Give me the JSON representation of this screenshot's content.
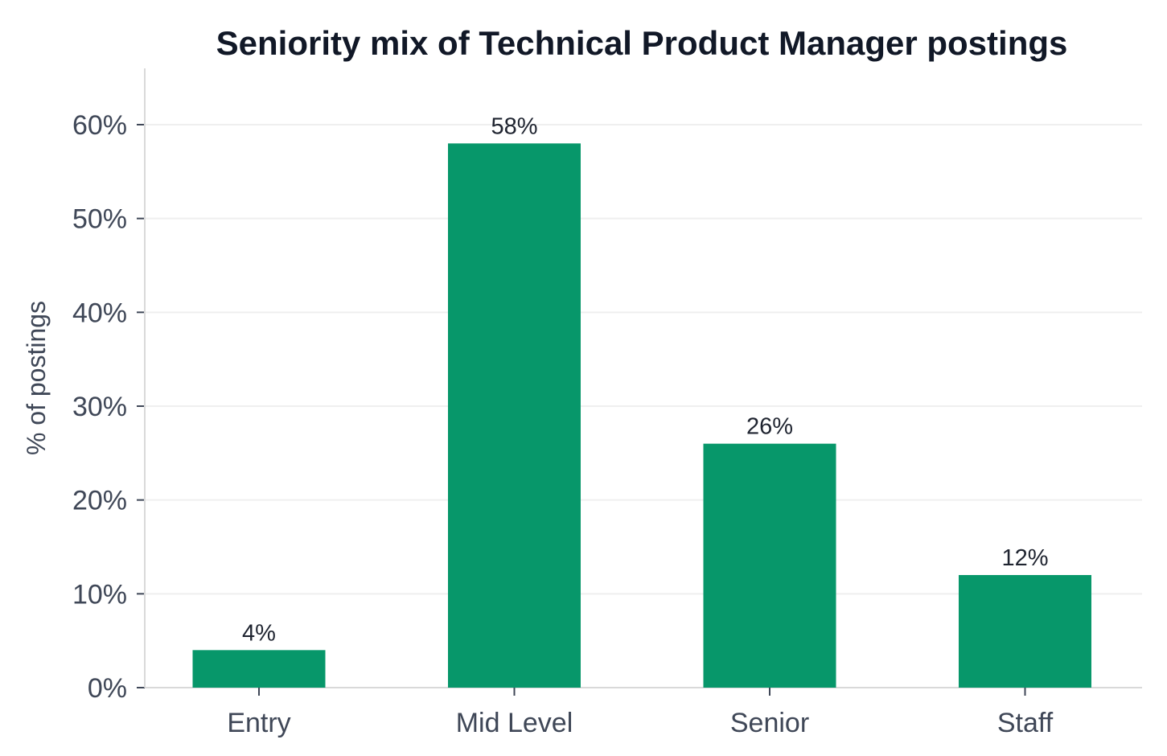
{
  "chart_data": {
    "type": "bar",
    "title": "Seniority mix of Technical Product Manager postings",
    "xlabel": "",
    "ylabel": "% of postings",
    "categories": [
      "Entry",
      "Mid Level",
      "Senior",
      "Staff"
    ],
    "values": [
      4,
      58,
      26,
      12
    ],
    "value_labels": [
      "4%",
      "58%",
      "26%",
      "12%"
    ],
    "y_ticks": [
      0,
      10,
      20,
      30,
      40,
      50,
      60
    ],
    "y_tick_labels": [
      "0%",
      "10%",
      "20%",
      "30%",
      "40%",
      "50%",
      "60%"
    ],
    "ylim": [
      0,
      66
    ],
    "grid": "horizontal",
    "legend": "none",
    "bar_color": "#07976a",
    "grid_color": "#efefef",
    "axis_color": "#d9d9d9"
  }
}
